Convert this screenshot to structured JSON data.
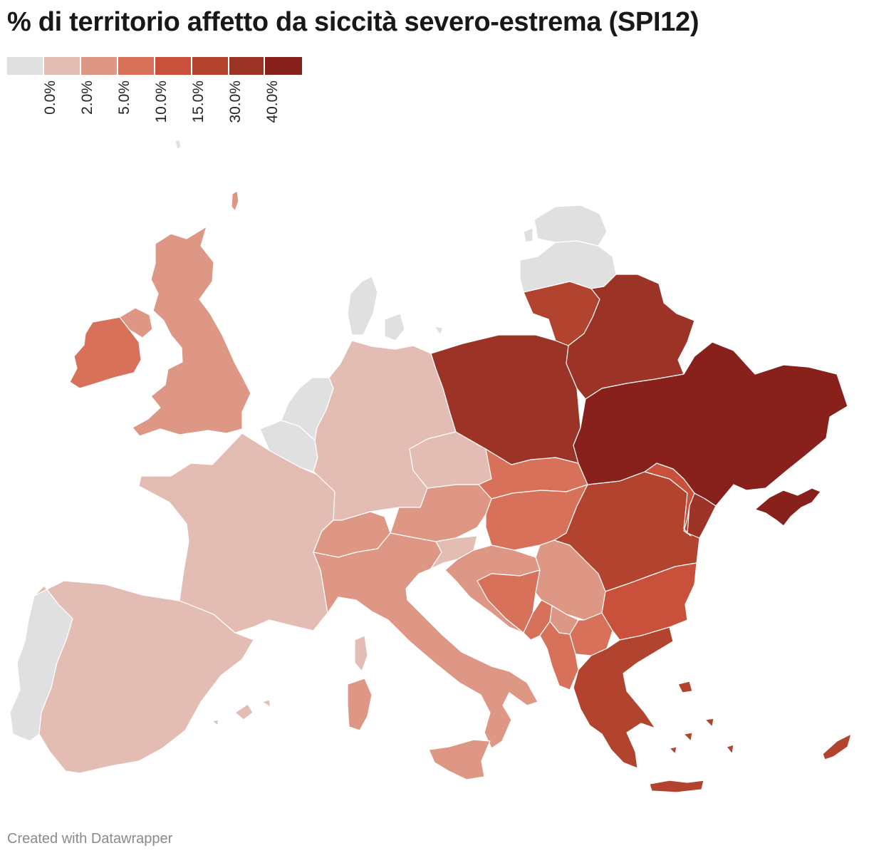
{
  "title": "% di territorio affetto da siccità severo-estrema  (SPI12)",
  "legend": {
    "colors": [
      "#e0e0e0",
      "#e3bdb3",
      "#dd9784",
      "#d8715a",
      "#c9503a",
      "#b1432f",
      "#9c3327",
      "#88211c"
    ],
    "ticks": [
      "0.0%",
      "2.0%",
      "5.0%",
      "10.0%",
      "15.0%",
      "30.0%",
      "40.0%"
    ]
  },
  "regions": [
    {
      "name": "Iceland-fragment",
      "bin": 0
    },
    {
      "name": "Norway-fragment",
      "bin": 2
    },
    {
      "name": "Ireland",
      "bin": 3
    },
    {
      "name": "Northern Ireland",
      "bin": 2
    },
    {
      "name": "United Kingdom",
      "bin": 2
    },
    {
      "name": "Portugal",
      "bin": 0
    },
    {
      "name": "Spain",
      "bin": 1
    },
    {
      "name": "Balearic Islands",
      "bin": 1
    },
    {
      "name": "France",
      "bin": 1
    },
    {
      "name": "Corsica",
      "bin": 1
    },
    {
      "name": "Belgium",
      "bin": 0
    },
    {
      "name": "Netherlands",
      "bin": 0
    },
    {
      "name": "Denmark",
      "bin": 0
    },
    {
      "name": "Germany",
      "bin": 1
    },
    {
      "name": "Switzerland",
      "bin": 2
    },
    {
      "name": "Italy",
      "bin": 2
    },
    {
      "name": "Sardinia",
      "bin": 2
    },
    {
      "name": "Sicily",
      "bin": 2
    },
    {
      "name": "Austria",
      "bin": 2
    },
    {
      "name": "Czechia",
      "bin": 1
    },
    {
      "name": "Slovenia",
      "bin": 1
    },
    {
      "name": "Croatia",
      "bin": 2
    },
    {
      "name": "Bosnia",
      "bin": 3
    },
    {
      "name": "Serbia",
      "bin": 2
    },
    {
      "name": "Montenegro",
      "bin": 3
    },
    {
      "name": "Kosovo",
      "bin": 2
    },
    {
      "name": "North Macedonia",
      "bin": 3
    },
    {
      "name": "Albania",
      "bin": 3
    },
    {
      "name": "Slovakia",
      "bin": 3
    },
    {
      "name": "Hungary",
      "bin": 3
    },
    {
      "name": "Romania",
      "bin": 5
    },
    {
      "name": "Moldova",
      "bin": 4
    },
    {
      "name": "Transnistria",
      "bin": 6
    },
    {
      "name": "Bulgaria",
      "bin": 4
    },
    {
      "name": "Greece",
      "bin": 5
    },
    {
      "name": "Aegean islands",
      "bin": 5
    },
    {
      "name": "Crete",
      "bin": 5
    },
    {
      "name": "Cyprus",
      "bin": 5
    },
    {
      "name": "Poland",
      "bin": 6
    },
    {
      "name": "Lithuania",
      "bin": 5
    },
    {
      "name": "Latvia",
      "bin": 0
    },
    {
      "name": "Estonia",
      "bin": 0
    },
    {
      "name": "Belarus",
      "bin": 6
    },
    {
      "name": "Ukraine",
      "bin": 7
    },
    {
      "name": "Crimea",
      "bin": 7
    }
  ],
  "footer": "Created with Datawrapper"
}
